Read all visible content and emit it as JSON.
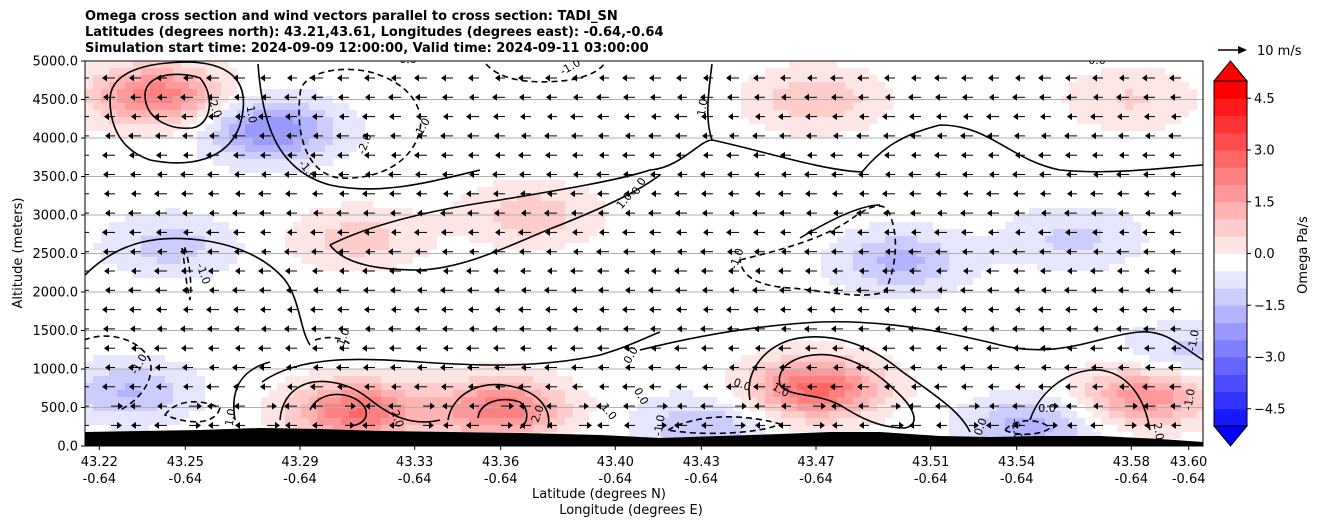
{
  "chart_data": {
    "type": "heatmap",
    "title_lines": [
      "Omega cross section and wind vectors parallel to cross section: TADI_SN",
      "Latitudes (degrees north): 43.21,43.61, Longitudes (degrees east): -0.64,-0.64",
      "Simulation start time: 2024-09-09 12:00:00, Valid time: 2024-09-11 03:00:00"
    ],
    "xlabel": "Latitude (degrees N)",
    "xlabel2": "Longitude (degrees E)",
    "ylabel": "Altitude (meters)",
    "x_ticks": [
      {
        "lat": "43.22",
        "lon": "-0.64"
      },
      {
        "lat": "43.25",
        "lon": "-0.64"
      },
      {
        "lat": "43.29",
        "lon": "-0.64"
      },
      {
        "lat": "43.33",
        "lon": "-0.64"
      },
      {
        "lat": "43.36",
        "lon": "-0.64"
      },
      {
        "lat": "43.40",
        "lon": "-0.64"
      },
      {
        "lat": "43.43",
        "lon": "-0.64"
      },
      {
        "lat": "43.47",
        "lon": "-0.64"
      },
      {
        "lat": "43.51",
        "lon": "-0.64"
      },
      {
        "lat": "43.54",
        "lon": "-0.64"
      },
      {
        "lat": "43.58",
        "lon": "-0.64"
      },
      {
        "lat": "43.60",
        "lon": "-0.64"
      }
    ],
    "y_ticks": [
      "0.0",
      "500.0",
      "1000.0",
      "1500.0",
      "2000.0",
      "2500.0",
      "3000.0",
      "3500.0",
      "4000.0",
      "4500.0",
      "5000.0"
    ],
    "ylim": [
      0,
      5000
    ],
    "grid": "horizontal",
    "colorbar": {
      "label": "Omega Pa/s",
      "ticks": [
        "4.5",
        "3.0",
        "1.5",
        "0.0",
        "−1.5",
        "−3.0",
        "−4.5"
      ],
      "range": [
        -5,
        5
      ],
      "extend": "both"
    },
    "quiver_key": "10 m/s",
    "omega_field": {
      "description_units": "Pa/s",
      "blobs": [
        {
          "lat": 43.24,
          "alt": 4550,
          "omega": 2.6
        },
        {
          "lat": 43.28,
          "alt": 4100,
          "omega": -2.2
        },
        {
          "lat": 43.31,
          "alt": 2700,
          "omega": 1.0
        },
        {
          "lat": 43.37,
          "alt": 3000,
          "omega": 1.1
        },
        {
          "lat": 43.47,
          "alt": 4500,
          "omega": 1.2
        },
        {
          "lat": 43.58,
          "alt": 4500,
          "omega": 0.8
        },
        {
          "lat": 43.23,
          "alt": 700,
          "omega": -1.3
        },
        {
          "lat": 43.245,
          "alt": 2600,
          "omega": -1.0
        },
        {
          "lat": 43.5,
          "alt": 2400,
          "omega": -1.4
        },
        {
          "lat": 43.56,
          "alt": 2700,
          "omega": -0.9
        },
        {
          "lat": 43.31,
          "alt": 450,
          "omega": 2.8
        },
        {
          "lat": 43.36,
          "alt": 480,
          "omega": 2.6
        },
        {
          "lat": 43.47,
          "alt": 750,
          "omega": 3.0
        },
        {
          "lat": 43.585,
          "alt": 650,
          "omega": 2.2
        },
        {
          "lat": 43.43,
          "alt": 250,
          "omega": -1.2
        },
        {
          "lat": 43.545,
          "alt": 250,
          "omega": -1.5
        },
        {
          "lat": 43.6,
          "alt": 1200,
          "omega": -1.0
        }
      ]
    },
    "contour_labels": [
      "2.0",
      "1.0",
      "0.0",
      "-1.0",
      "-2.0"
    ],
    "terrain": "black surface along the bottom"
  }
}
